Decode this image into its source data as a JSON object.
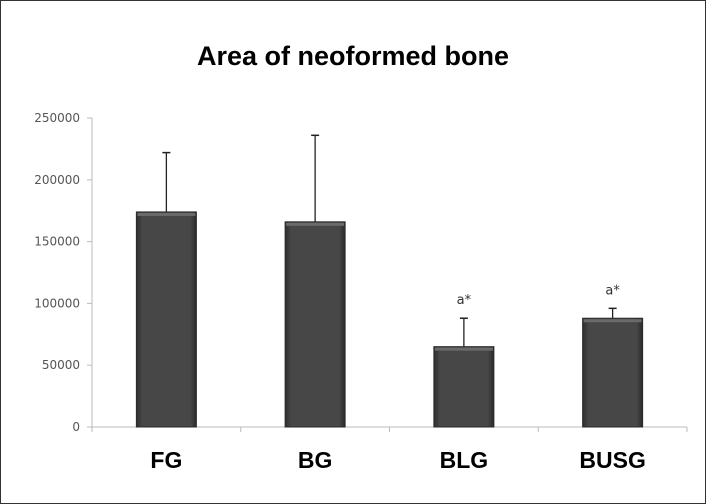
{
  "chart_data": {
    "type": "bar",
    "title": "Area of neoformed bone",
    "xlabel": "",
    "ylabel": "",
    "categories": [
      "FG",
      "BG",
      "BLG",
      "BUSG"
    ],
    "values": [
      174000,
      166000,
      65000,
      88000
    ],
    "error_upper": [
      222000,
      236000,
      88000,
      96000
    ],
    "annotations": [
      "",
      "",
      "a*",
      "a*"
    ],
    "yticks": [
      0,
      50000,
      100000,
      150000,
      200000,
      250000
    ],
    "ylim": [
      0,
      250000
    ],
    "grid": false,
    "legend": null,
    "bar_color": "#3f3f3f"
  }
}
